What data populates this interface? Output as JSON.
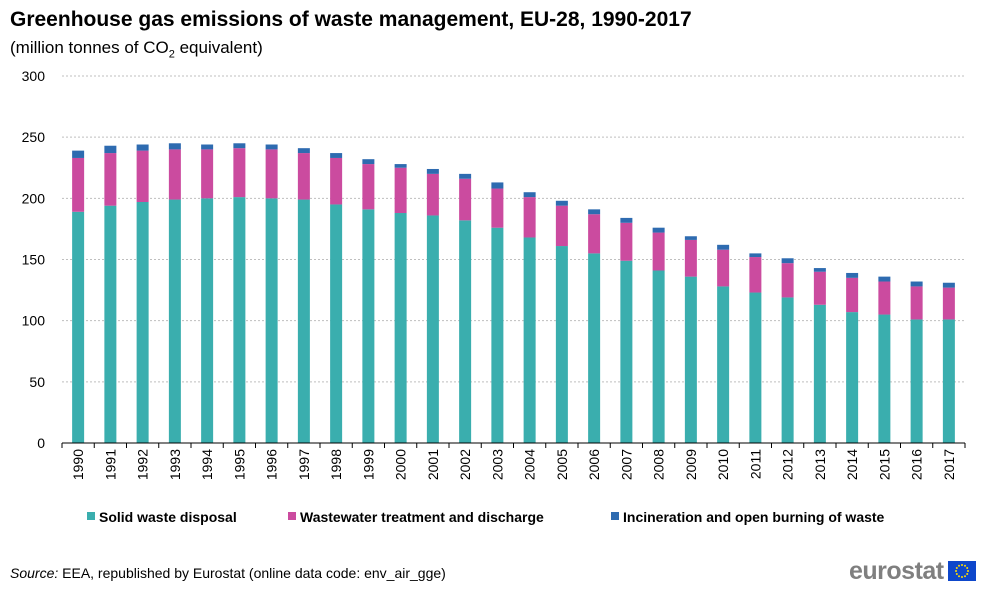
{
  "title": "Greenhouse gas emissions of waste management, EU-28, 1990-2017",
  "subtitle_prefix": "(million  tonnes of CO",
  "subtitle_sub": "2",
  "subtitle_suffix": " equivalent)",
  "source": {
    "label": "Source:",
    "text": " EEA, republished by Eurostat (online data code: env_air_gge)"
  },
  "logo": {
    "text": "eurostat",
    "flag_icon": "eu-flag-icon"
  },
  "colors": {
    "solid": "#3aaeae",
    "wastewater": "#cb4b9f",
    "incineration": "#2e6bb0",
    "grid": "#bfbfbf",
    "axis": "#000000"
  },
  "chart_data": {
    "type": "bar",
    "stacked": true,
    "title": "Greenhouse gas emissions of waste management, EU-28, 1990-2017",
    "ylim": [
      0,
      300
    ],
    "yticks": [
      0,
      50,
      100,
      150,
      200,
      250,
      300
    ],
    "grid": true,
    "legend_position": "bottom",
    "categories": [
      "1990",
      "1991",
      "1992",
      "1993",
      "1994",
      "1995",
      "1996",
      "1997",
      "1998",
      "1999",
      "2000",
      "2001",
      "2002",
      "2003",
      "2004",
      "2005",
      "2006",
      "2007",
      "2008",
      "2009",
      "2010",
      "2011",
      "2012",
      "2013",
      "2014",
      "2015",
      "2016",
      "2017"
    ],
    "series": [
      {
        "name": "Solid waste disposal",
        "values": [
          189,
          194,
          197,
          199,
          200,
          201,
          200,
          199,
          195,
          191,
          188,
          186,
          182,
          176,
          168,
          161,
          155,
          149,
          141,
          136,
          128,
          123,
          119,
          113,
          107,
          105,
          101,
          101
        ]
      },
      {
        "name": "Wastewater treatment and discharge",
        "values": [
          44,
          43,
          42,
          41,
          40,
          40,
          40,
          38,
          38,
          37,
          37,
          34,
          34,
          32,
          33,
          33,
          32,
          31,
          31,
          30,
          30,
          29,
          28,
          27,
          28,
          27,
          27,
          26
        ]
      },
      {
        "name": "Incineration and open burning of waste",
        "values": [
          6,
          6,
          5,
          5,
          4,
          4,
          4,
          4,
          4,
          4,
          3,
          4,
          4,
          5,
          4,
          4,
          4,
          4,
          4,
          3,
          4,
          3,
          4,
          3,
          4,
          4,
          4,
          4
        ]
      }
    ]
  }
}
